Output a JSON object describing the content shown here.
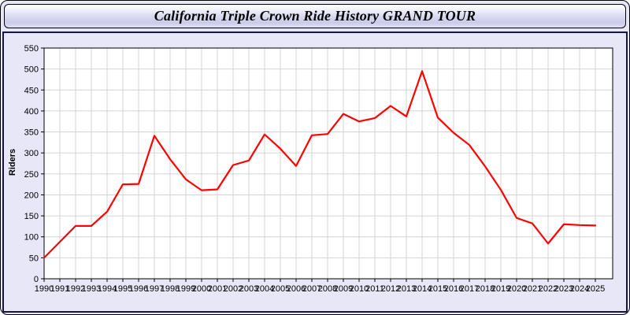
{
  "window": {
    "title": "California Triple Crown Ride History GRAND TOUR"
  },
  "chart_data": {
    "type": "line",
    "title": "California Triple Crown Ride History GRAND TOUR",
    "xlabel": "",
    "ylabel": "Riders",
    "x": [
      1990,
      1991,
      1992,
      1993,
      1994,
      1995,
      1996,
      1997,
      1998,
      1999,
      2000,
      2001,
      2002,
      2003,
      2004,
      2005,
      2006,
      2007,
      2008,
      2009,
      2010,
      2011,
      2012,
      2013,
      2014,
      2015,
      2016,
      2017,
      2018,
      2019,
      2020,
      2021,
      2022,
      2023,
      2024,
      2025
    ],
    "series": [
      {
        "name": "Riders",
        "color": "#ff0000",
        "values": [
          50,
          88,
          126,
          126,
          160,
          225,
          226,
          341,
          285,
          237,
          211,
          213,
          271,
          282,
          344,
          310,
          269,
          342,
          345,
          393,
          375,
          383,
          412,
          387,
          495,
          384,
          348,
          319,
          268,
          212,
          145,
          132,
          84,
          130,
          128,
          127
        ]
      }
    ],
    "ylim": [
      0,
      550
    ],
    "yticks": [
      0,
      50,
      100,
      150,
      200,
      250,
      300,
      350,
      400,
      450,
      500,
      550
    ],
    "grid": true,
    "legend": "none",
    "grid_color": "#d4d4d4",
    "axis_color": "#000000",
    "plot_bg": "#ffffff",
    "outer_bg": "#e7e7f7"
  }
}
